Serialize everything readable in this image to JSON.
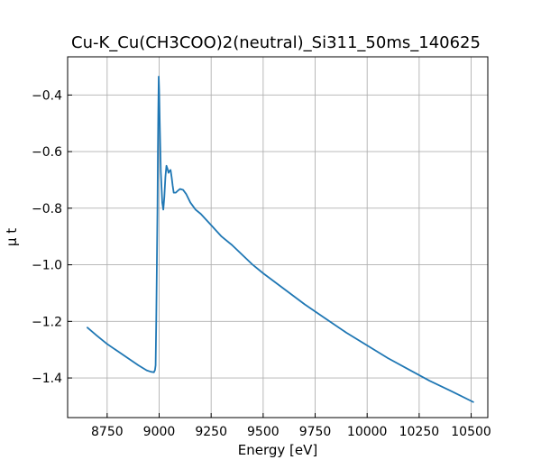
{
  "chart_data": {
    "type": "line",
    "title": "Cu-K_Cu(CH3COO)2(neutral)_Si311_50ms_140625",
    "xlabel": "Energy [eV]",
    "ylabel": "μ t",
    "xlim": [
      8560,
      10580
    ],
    "ylim": [
      -1.54,
      -0.265
    ],
    "x_ticks": [
      8750,
      9000,
      9250,
      9500,
      9750,
      10000,
      10250,
      10500
    ],
    "y_ticks": [
      -1.4,
      -1.2,
      -1.0,
      -0.8,
      -0.6,
      -0.4
    ],
    "x_tick_labels": [
      "8750",
      "9000",
      "9250",
      "9500",
      "9750",
      "10000",
      "10250",
      "10500"
    ],
    "y_tick_labels": [
      "−1.4",
      "−1.2",
      "−1.0",
      "−0.8",
      "−0.6",
      "−0.4"
    ],
    "grid": true,
    "series": [
      {
        "color": "#1f77b4",
        "x": [
          8655,
          8700,
          8750,
          8800,
          8850,
          8900,
          8940,
          8960,
          8975,
          8980,
          8983,
          8986,
          8989,
          8992,
          8994,
          8996,
          8998,
          9000,
          9003,
          9008,
          9015,
          9020,
          9025,
          9030,
          9035,
          9040,
          9045,
          9050,
          9055,
          9060,
          9065,
          9070,
          9080,
          9090,
          9100,
          9115,
          9130,
          9150,
          9175,
          9200,
          9225,
          9250,
          9300,
          9350,
          9400,
          9450,
          9500,
          9600,
          9700,
          9800,
          9900,
          10000,
          10100,
          10200,
          10300,
          10400,
          10510
        ],
        "y": [
          -1.222,
          -1.25,
          -1.28,
          -1.305,
          -1.33,
          -1.355,
          -1.373,
          -1.378,
          -1.38,
          -1.372,
          -1.355,
          -1.2,
          -1.0,
          -0.8,
          -0.6,
          -0.45,
          -0.335,
          -0.38,
          -0.5,
          -0.67,
          -0.78,
          -0.805,
          -0.76,
          -0.69,
          -0.65,
          -0.66,
          -0.675,
          -0.668,
          -0.665,
          -0.69,
          -0.72,
          -0.745,
          -0.745,
          -0.738,
          -0.732,
          -0.735,
          -0.75,
          -0.78,
          -0.805,
          -0.82,
          -0.84,
          -0.86,
          -0.9,
          -0.93,
          -0.965,
          -1.0,
          -1.03,
          -1.085,
          -1.14,
          -1.19,
          -1.24,
          -1.285,
          -1.33,
          -1.37,
          -1.41,
          -1.445,
          -1.485
        ]
      }
    ]
  }
}
